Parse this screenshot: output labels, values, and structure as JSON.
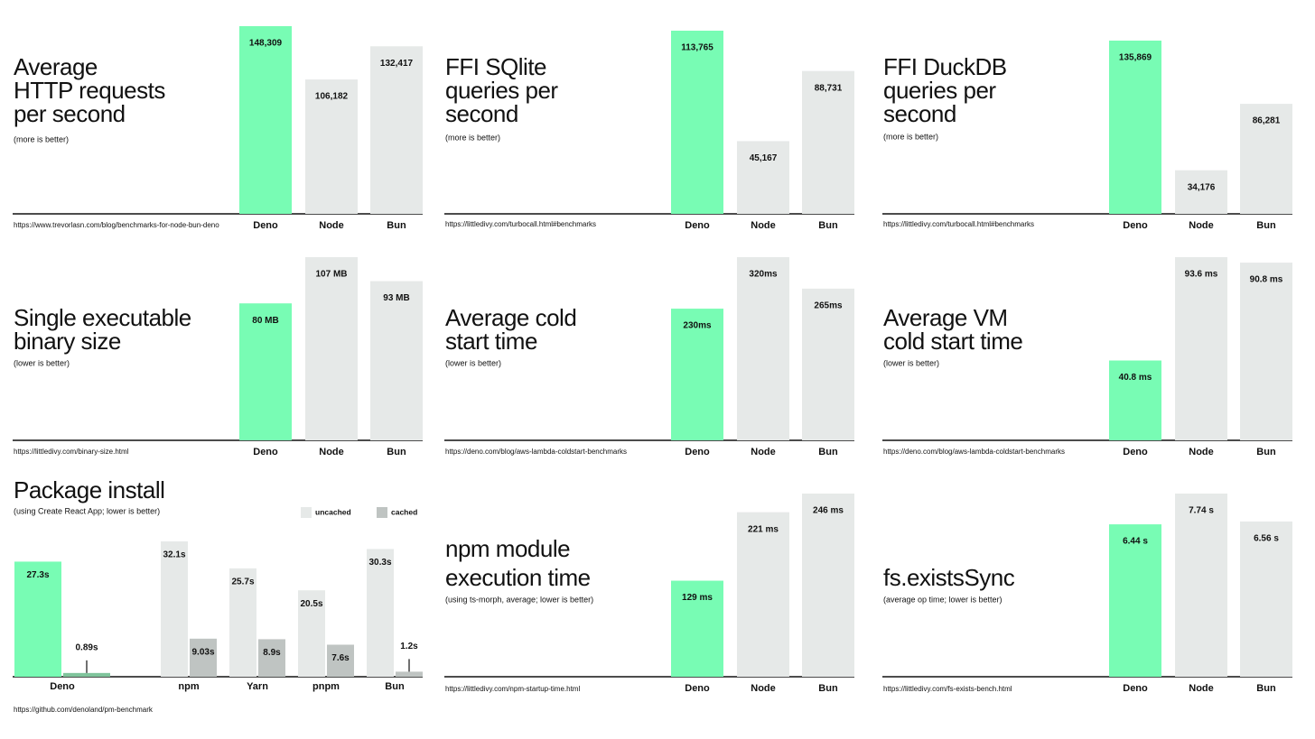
{
  "chart_data": [
    {
      "type": "bar",
      "title": "Average\nHTTP requests\nper second",
      "subtitle": "(more is better)",
      "source": "https://www.trevorlasn.com/blog/benchmarks-for-node-bun-deno",
      "categories": [
        "Deno",
        "Node",
        "Bun"
      ],
      "values": [
        148309,
        106182,
        132417
      ],
      "value_labels": [
        "148,309",
        "106,182",
        "132,417"
      ],
      "colors": [
        "#78fcb4",
        "#e6e9e8",
        "#e6e9e8"
      ]
    },
    {
      "type": "bar",
      "title": "FFI SQlite\nqueries per\nsecond",
      "subtitle": "(more is better)",
      "source": "https://littledivy.com/turbocall.html#benchmarks",
      "categories": [
        "Deno",
        "Node",
        "Bun"
      ],
      "values": [
        113765,
        45167,
        88731
      ],
      "value_labels": [
        "113,765",
        "45,167",
        "88,731"
      ],
      "colors": [
        "#78fcb4",
        "#e6e9e8",
        "#e6e9e8"
      ]
    },
    {
      "type": "bar",
      "title": "FFI DuckDB\nqueries per\nsecond",
      "subtitle": "(more is better)",
      "source": "https://littledivy.com/turbocall.html#benchmarks",
      "categories": [
        "Deno",
        "Node",
        "Bun"
      ],
      "values": [
        135869,
        34176,
        86281
      ],
      "value_labels": [
        "135,869",
        "34,176",
        "86,281"
      ],
      "colors": [
        "#78fcb4",
        "#e6e9e8",
        "#e6e9e8"
      ]
    },
    {
      "type": "bar",
      "title": "Single executable\nbinary size",
      "subtitle": "(lower is better)",
      "source": "https://littledivy.com/binary-size.html",
      "categories": [
        "Deno",
        "Node",
        "Bun"
      ],
      "values": [
        80,
        107,
        93
      ],
      "value_labels": [
        "80 MB",
        "107 MB",
        "93 MB"
      ],
      "colors": [
        "#78fcb4",
        "#e6e9e8",
        "#e6e9e8"
      ]
    },
    {
      "type": "bar",
      "title": "Average cold\nstart time",
      "subtitle": "(lower is better)",
      "source": "https://deno.com/blog/aws-lambda-coldstart-benchmarks",
      "categories": [
        "Deno",
        "Node",
        "Bun"
      ],
      "values": [
        230,
        320,
        265
      ],
      "value_labels": [
        "230ms",
        "320ms",
        "265ms"
      ],
      "colors": [
        "#78fcb4",
        "#e6e9e8",
        "#e6e9e8"
      ]
    },
    {
      "type": "bar",
      "title": "Average VM\ncold start time",
      "subtitle": "(lower is better)",
      "source": "https://deno.com/blog/aws-lambda-coldstart-benchmarks",
      "categories": [
        "Deno",
        "Node",
        "Bun"
      ],
      "values": [
        40.8,
        93.6,
        90.8
      ],
      "value_labels": [
        "40.8 ms",
        "93.6 ms",
        "90.8 ms"
      ],
      "colors": [
        "#78fcb4",
        "#e6e9e8",
        "#e6e9e8"
      ]
    },
    {
      "type": "grouped_bar",
      "title": "Package install",
      "subtitle": "(using Create React App; lower is better)",
      "source": "https://github.com/denoland/pm-benchmark",
      "categories": [
        "Deno",
        "npm",
        "Yarn",
        "pnpm",
        "Bun"
      ],
      "series": [
        {
          "name": "uncached",
          "color": "#e6e9e8",
          "colors": [
            "#78fcb4",
            "#e6e9e8",
            "#e6e9e8",
            "#e6e9e8",
            "#e6e9e8"
          ],
          "values": [
            27.3,
            32.1,
            25.7,
            20.5,
            30.3
          ],
          "value_labels": [
            "27.3s",
            "32.1s",
            "25.7s",
            "20.5s",
            "30.3s"
          ]
        },
        {
          "name": "cached",
          "color": "#bfc4c2",
          "colors": [
            "#7fc49c",
            "#bfc4c2",
            "#bfc4c2",
            "#bfc4c2",
            "#bfc4c2"
          ],
          "values": [
            0.89,
            9.03,
            8.9,
            7.6,
            1.2
          ],
          "value_labels": [
            "0.89s",
            "9.03s",
            "8.9s",
            "7.6s",
            "1.2s"
          ]
        }
      ]
    },
    {
      "type": "bar",
      "title": "npm module\nexecution time",
      "subtitle": "(using ts-morph, average; lower is better)",
      "source": "https://littledivy.com/npm-startup-time.html",
      "categories": [
        "Deno",
        "Node",
        "Bun"
      ],
      "values": [
        129,
        221,
        246
      ],
      "value_labels": [
        "129 ms",
        "221 ms",
        "246 ms"
      ],
      "colors": [
        "#78fcb4",
        "#e6e9e8",
        "#e6e9e8"
      ]
    },
    {
      "type": "bar",
      "title": "fs.existsSync",
      "subtitle": "(average op time; lower is better)",
      "source": "https://littledivy.com/fs-exists-bench.html",
      "categories": [
        "Deno",
        "Node",
        "Bun"
      ],
      "values": [
        6.44,
        7.74,
        6.56
      ],
      "value_labels": [
        "6.44 s",
        "7.74 s",
        "6.56 s"
      ],
      "colors": [
        "#78fcb4",
        "#e6e9e8",
        "#e6e9e8"
      ]
    }
  ]
}
